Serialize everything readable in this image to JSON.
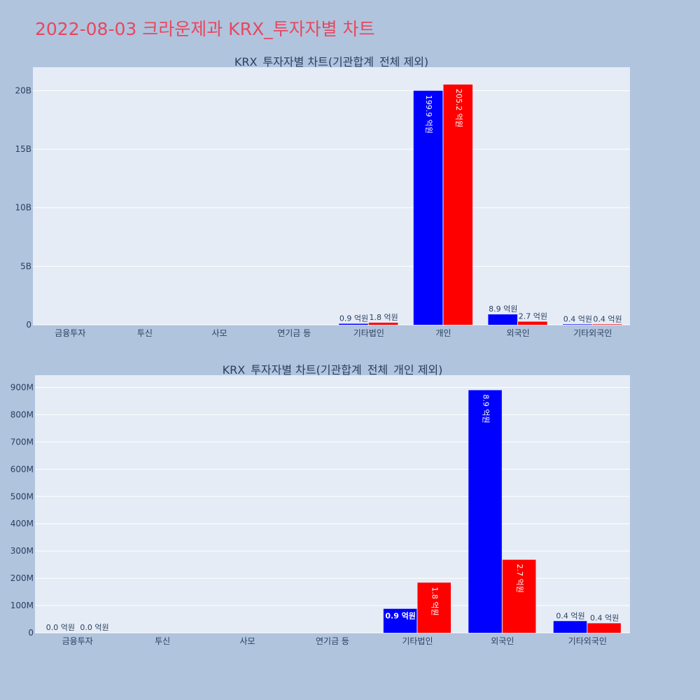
{
  "page_title": "2022-08-03 크라운제과 KRX_투자자별 차트",
  "colors": {
    "series_a": "#0000ff",
    "series_b": "#ff0000"
  },
  "chart_data": [
    {
      "type": "bar",
      "title": "KRX_투자자별 차트(기관합계_전체 제외)",
      "categories": [
        "금융투자",
        "투신",
        "사모",
        "연기금 등",
        "기타법인",
        "개인",
        "외국인",
        "기타외국인"
      ],
      "series": [
        {
          "values": [
            0,
            0,
            0,
            0,
            90000000,
            19990000000,
            890000000,
            40000000
          ],
          "labels": [
            "",
            "",
            "",
            "",
            "0.9 억원",
            "199.9 억원",
            "8.9 억원",
            "0.4 억원"
          ]
        },
        {
          "values": [
            0,
            0,
            0,
            0,
            180000000,
            20520000000,
            270000000,
            40000000
          ],
          "labels": [
            "",
            "",
            "",
            "",
            "1.8 억원",
            "205.2 억원",
            "2.7 억원",
            "0.4 억원"
          ]
        }
      ],
      "ylim": [
        0,
        22000000000
      ],
      "yticks": [
        0,
        5000000000,
        10000000000,
        15000000000,
        20000000000
      ],
      "ytick_labels": [
        "0",
        "5B",
        "10B",
        "15B",
        "20B"
      ],
      "xlabel": "",
      "ylabel": "",
      "grid": true
    },
    {
      "type": "bar",
      "title": "KRX_투자자별 차트(기관합계_전체_개인 제외)",
      "categories": [
        "금융투자",
        "투신",
        "사모",
        "연기금 등",
        "기타법인",
        "외국인",
        "기타외국인"
      ],
      "series": [
        {
          "values": [
            0,
            0,
            0,
            0,
            88000000,
            890000000,
            43000000
          ],
          "labels": [
            "0.0 억원",
            "",
            "",
            "",
            "0.9 억원",
            "8.9 억원",
            "0.4 억원"
          ]
        },
        {
          "values": [
            0,
            0,
            0,
            0,
            184000000,
            268000000,
            35000000
          ],
          "labels": [
            "0.0 억원",
            "",
            "",
            "",
            "1.8 억원",
            "2.7 억원",
            "0.4 억원"
          ]
        }
      ],
      "ylim": [
        0,
        945000000
      ],
      "yticks": [
        0,
        100000000,
        200000000,
        300000000,
        400000000,
        500000000,
        600000000,
        700000000,
        800000000,
        900000000
      ],
      "ytick_labels": [
        "0",
        "100M",
        "200M",
        "300M",
        "400M",
        "500M",
        "600M",
        "700M",
        "800M",
        "900M"
      ],
      "xlabel": "",
      "ylabel": "",
      "grid": true
    }
  ]
}
